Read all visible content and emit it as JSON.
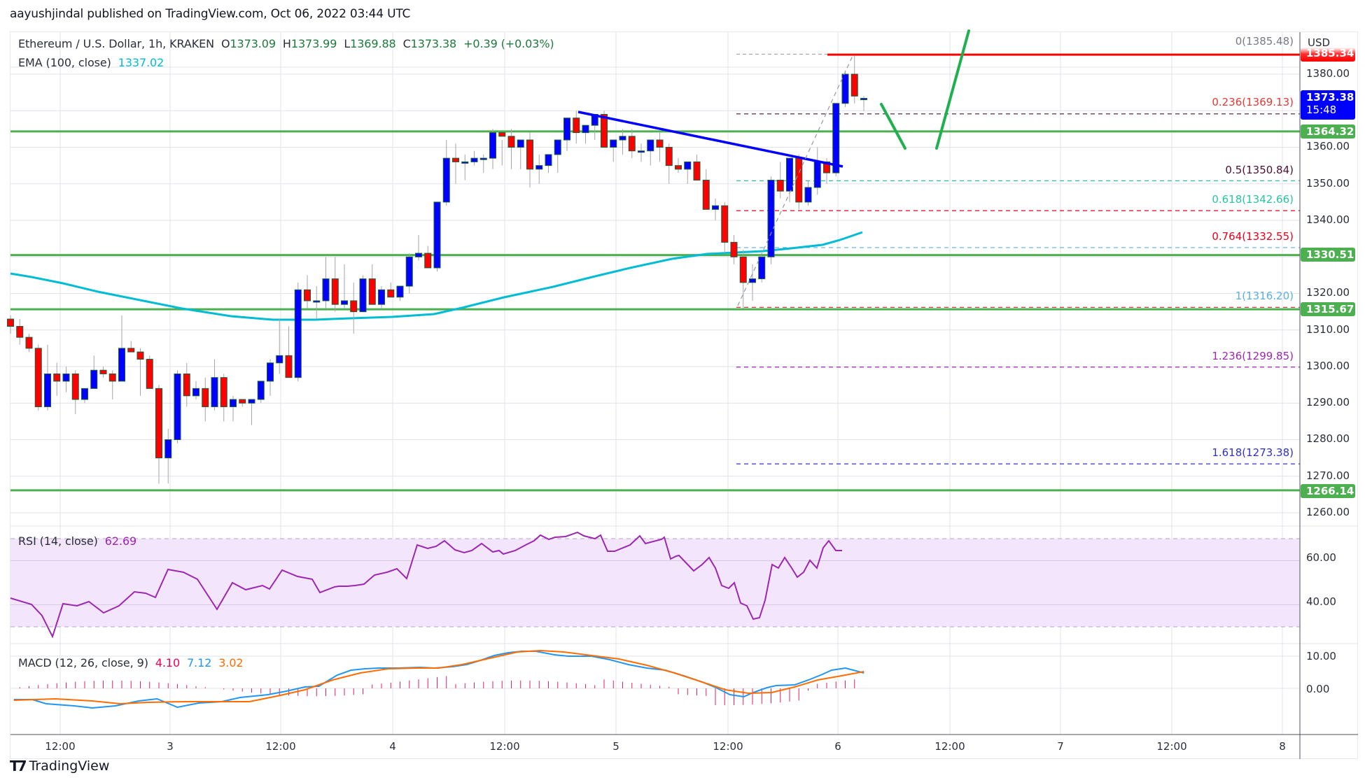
{
  "header": {
    "publisher": "aayushjindal published on TradingView.com, Oct 06, 2022 03:44 UTC"
  },
  "legend": {
    "symbol": "Ethereum / U.S. Dollar, 1h, KRAKEN",
    "open_label": "O",
    "open": "1373.09",
    "high_label": "H",
    "high": "1373.99",
    "low_label": "L",
    "low": "1369.88",
    "close_label": "C",
    "close": "1373.38",
    "change": "+0.39 (+0.03%)",
    "ema_label": "EMA (100, close)",
    "ema_value": "1337.02",
    "rsi_label": "RSI (14, close)",
    "rsi_value": "62.69",
    "macd_label": "MACD (12, 26, close, 9)",
    "macd_hist": "4.10",
    "macd_line": "7.12",
    "macd_signal": "3.02"
  },
  "price_axis": {
    "currency": "USD",
    "ticks": [
      "1380.00",
      "1360.00",
      "1350.00",
      "1340.00",
      "1320.00",
      "1310.00",
      "1300.00",
      "1290.00",
      "1280.00",
      "1270.00",
      "1260.00"
    ],
    "badges": {
      "high_line": "1385.34",
      "last_price": "1373.38",
      "countdown": "15:48",
      "level1": "1364.32",
      "level2": "1330.51",
      "level3": "1315.67",
      "level4": "1266.14"
    },
    "rsi_ticks": [
      "60.00",
      "40.00"
    ],
    "macd_ticks": [
      "10.00",
      "0.00"
    ]
  },
  "time_axis": {
    "labels": [
      "12:00",
      "3",
      "12:00",
      "4",
      "12:00",
      "5",
      "12:00",
      "6",
      "12:00",
      "7",
      "12:00",
      "8"
    ]
  },
  "fibonacci": [
    {
      "label": "0(1385.48)",
      "color": "#787b86"
    },
    {
      "label": "0.236(1369.13)",
      "color": "#e53935"
    },
    {
      "label": "0.5(1350.84)",
      "color": "#4a1030"
    },
    {
      "label": "0.618(1342.66)",
      "color": "#26c6a0"
    },
    {
      "label": "0.764(1332.55)",
      "color": "#e8001c"
    },
    {
      "label": "1(1316.20)",
      "color": "#5aafe0"
    },
    {
      "label": "1.236(1299.85)",
      "color": "#9c27b0"
    },
    {
      "label": "1.618(1273.38)",
      "color": "#3030c8"
    }
  ],
  "branding": {
    "logo_text": "TradingView"
  },
  "colors": {
    "up_candle": "#0000ff",
    "down_candle": "#ff0000",
    "ema": "#00bcd4",
    "support_lines": "#4caf50",
    "resistance_line": "#ff0000",
    "trendline": "#0000ff",
    "projection": "#20b050",
    "rsi_line": "#9c27b0",
    "rsi_band": "#f3e5fc",
    "macd_line": "#2196f3",
    "signal_line": "#ff6d00",
    "histogram": "#e91e63",
    "last_price_badge": "#0000ff"
  },
  "chart_data": [
    {
      "type": "candlestick",
      "title": "Ethereum / U.S. Dollar, 1h, KRAKEN",
      "ylabel": "USD",
      "ylim": [
        1255,
        1390
      ],
      "x_tick_labels": [
        "12:00",
        "3",
        "12:00",
        "4",
        "12:00",
        "5",
        "12:00",
        "6",
        "12:00",
        "7",
        "12:00",
        "8"
      ],
      "last_candle": {
        "open": 1373.09,
        "high": 1373.99,
        "low": 1369.88,
        "close": 1373.38
      },
      "candles_ohlc_approx": [
        [
          1313,
          1314,
          1309,
          1311
        ],
        [
          1311,
          1313,
          1306,
          1308
        ],
        [
          1308,
          1309,
          1304,
          1305
        ],
        [
          1305,
          1306,
          1288,
          1289
        ],
        [
          1289,
          1306,
          1288,
          1298
        ],
        [
          1298,
          1301,
          1292,
          1296
        ],
        [
          1296,
          1300,
          1293,
          1298
        ],
        [
          1298,
          1299,
          1287,
          1291
        ],
        [
          1291,
          1294,
          1290,
          1294
        ],
        [
          1294,
          1303,
          1294,
          1299
        ],
        [
          1299,
          1300,
          1297,
          1298
        ],
        [
          1298,
          1299,
          1291,
          1296
        ],
        [
          1296,
          1314,
          1296,
          1305
        ],
        [
          1305,
          1307,
          1304,
          1304
        ],
        [
          1304,
          1305,
          1292,
          1302
        ],
        [
          1302,
          1303,
          1296,
          1294
        ],
        [
          1294,
          1295,
          1268,
          1275
        ],
        [
          1275,
          1283,
          1268,
          1280
        ],
        [
          1280,
          1299,
          1279,
          1298
        ],
        [
          1298,
          1301,
          1289,
          1292
        ],
        [
          1292,
          1296,
          1291,
          1294
        ],
        [
          1294,
          1297,
          1285,
          1289
        ],
        [
          1289,
          1302,
          1288,
          1297
        ],
        [
          1297,
          1298,
          1285,
          1289
        ],
        [
          1289,
          1292,
          1285,
          1291
        ],
        [
          1291,
          1291,
          1289,
          1290
        ],
        [
          1290,
          1291,
          1284,
          1291
        ],
        [
          1291,
          1294,
          1290,
          1296
        ],
        [
          1296,
          1302,
          1292,
          1301
        ],
        [
          1301,
          1313,
          1298,
          1303
        ],
        [
          1303,
          1311,
          1300,
          1297
        ],
        [
          1297,
          1323,
          1296,
          1321
        ],
        [
          1321,
          1325,
          1316,
          1318
        ],
        [
          1318,
          1322,
          1313,
          1318
        ],
        [
          1318,
          1330,
          1316,
          1324
        ],
        [
          1324,
          1330,
          1315,
          1317
        ],
        [
          1317,
          1328,
          1316,
          1318
        ],
        [
          1318,
          1323,
          1309,
          1315
        ],
        [
          1315,
          1325,
          1315,
          1324
        ],
        [
          1324,
          1328,
          1323,
          1317
        ],
        [
          1317,
          1322,
          1316,
          1321
        ],
        [
          1321,
          1323,
          1319,
          1319
        ],
        [
          1319,
          1322,
          1318,
          1322
        ],
        [
          1322,
          1331,
          1320,
          1330
        ],
        [
          1330,
          1336,
          1329,
          1331
        ],
        [
          1331,
          1333,
          1327,
          1327
        ],
        [
          1327,
          1345,
          1326,
          1345
        ],
        [
          1345,
          1362,
          1344,
          1357
        ],
        [
          1357,
          1361,
          1350,
          1356
        ],
        [
          1356,
          1358,
          1351,
          1356
        ],
        [
          1356,
          1359,
          1355,
          1357
        ],
        [
          1357,
          1358,
          1353,
          1357
        ],
        [
          1357,
          1365,
          1354,
          1364
        ],
        [
          1364,
          1362,
          1355,
          1363
        ],
        [
          1363,
          1365,
          1354,
          1360
        ],
        [
          1360,
          1362,
          1354,
          1362
        ],
        [
          1362,
          1364,
          1349,
          1354
        ],
        [
          1354,
          1358,
          1350,
          1355
        ],
        [
          1355,
          1358,
          1353,
          1358
        ],
        [
          1358,
          1361,
          1353,
          1362
        ],
        [
          1362,
          1365,
          1359,
          1368
        ],
        [
          1368,
          1370,
          1361,
          1364
        ],
        [
          1364,
          1365,
          1361,
          1366
        ],
        [
          1366,
          1368,
          1362,
          1369
        ],
        [
          1369,
          1370,
          1360,
          1360
        ],
        [
          1360,
          1362,
          1356,
          1362
        ],
        [
          1362,
          1365,
          1358,
          1363
        ],
        [
          1363,
          1365,
          1357,
          1359
        ],
        [
          1359,
          1361,
          1356,
          1359
        ],
        [
          1359,
          1362,
          1355,
          1362
        ],
        [
          1362,
          1364,
          1356,
          1360
        ],
        [
          1360,
          1361,
          1350,
          1355
        ],
        [
          1355,
          1357,
          1353,
          1354
        ],
        [
          1354,
          1356,
          1350,
          1356
        ],
        [
          1356,
          1358,
          1351,
          1351
        ],
        [
          1351,
          1354,
          1343,
          1343
        ],
        [
          1343,
          1346,
          1340,
          1344
        ],
        [
          1344,
          1345,
          1331,
          1334
        ],
        [
          1334,
          1336,
          1328,
          1330
        ],
        [
          1330,
          1332,
          1316,
          1323
        ],
        [
          1323,
          1328,
          1318,
          1324
        ],
        [
          1324,
          1329,
          1323,
          1330
        ],
        [
          1330,
          1352,
          1328,
          1351
        ],
        [
          1351,
          1356,
          1346,
          1348
        ],
        [
          1348,
          1357,
          1345,
          1357
        ],
        [
          1357,
          1358,
          1343,
          1345
        ],
        [
          1345,
          1351,
          1344,
          1349
        ],
        [
          1349,
          1360,
          1347,
          1356
        ],
        [
          1356,
          1357,
          1350,
          1353
        ],
        [
          1353,
          1372,
          1352,
          1372
        ],
        [
          1372,
          1381,
          1371,
          1380
        ],
        [
          1380,
          1385,
          1372,
          1374
        ],
        [
          1373.09,
          1373.99,
          1369.88,
          1373.38
        ]
      ],
      "ema_100_last": 1337.02,
      "horizontal_levels": [
        1364.32,
        1330.51,
        1315.67,
        1266.14
      ],
      "resistance_level": 1385.34,
      "fib_levels": {
        "0": 1385.48,
        "0.236": 1369.13,
        "0.5": 1350.84,
        "0.618": 1342.66,
        "0.764": 1332.55,
        "1": 1316.2,
        "1.236": 1299.85,
        "1.618": 1273.38
      },
      "trendline": {
        "from": [
          1,
          1370
        ],
        "to": [
          1,
          1354
        ]
      }
    },
    {
      "type": "line",
      "title": "RSI (14, close)",
      "ylim": [
        20,
        80
      ],
      "band": [
        30,
        70
      ],
      "ticks": [
        60,
        40
      ],
      "last_value": 62.69
    },
    {
      "type": "line",
      "title": "MACD (12, 26, close, 9)",
      "series": [
        {
          "name": "histogram",
          "last": 4.1
        },
        {
          "name": "macd",
          "last": 7.12
        },
        {
          "name": "signal",
          "last": 3.02
        }
      ],
      "ticks": [
        10,
        0
      ]
    }
  ]
}
